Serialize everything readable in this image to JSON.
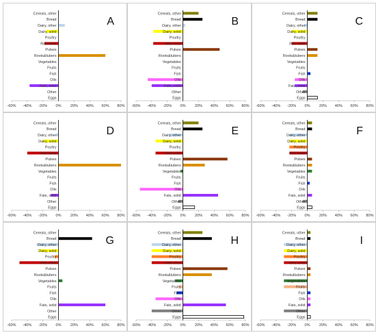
{
  "chart_data": [
    {
      "type": "bar",
      "letter": "A",
      "categories": [
        "Cereals, other",
        "Bread",
        "Dairy, other",
        "Dairy, solid",
        "Poultry",
        "Red meat",
        "Pulses",
        "Roots&tubers",
        "Vegetables",
        "Fruits",
        "Fish",
        "Oils",
        "Fats, solid",
        "Other",
        "Eggs"
      ],
      "values": [
        0,
        0,
        8,
        -16,
        0,
        -18,
        0,
        60,
        0,
        0,
        0,
        0,
        -37,
        0,
        0
      ],
      "colors": [
        "#808000",
        "#000000",
        "#bdd7ee",
        "#ffff00",
        "#ff7f27",
        "#c00000",
        "#8b3a0f",
        "#d99100",
        "#2e7d32",
        "#f4b183",
        "#0033cc",
        "#ff66ff",
        "#9933ff",
        "#7f7f7f",
        "#ffffff"
      ],
      "xlim": [
        -60,
        80
      ],
      "xticks": [
        "-60%",
        "-40%",
        "-20%",
        "0%",
        "20%",
        "40%",
        "60%",
        "80%"
      ]
    },
    {
      "type": "bar",
      "letter": "B",
      "categories": [
        "Cereals, other",
        "Bread",
        "Dairy, other",
        "Dairy, solid",
        "Poultry",
        "Red meat",
        "Pulses",
        "Roots&tubers",
        "Vegetables",
        "Fruits",
        "Fish",
        "Oils",
        "Fats, solid",
        "Other",
        "Eggs"
      ],
      "values": [
        20,
        25,
        3,
        -38,
        0,
        -38,
        47,
        0,
        0,
        0,
        0,
        -45,
        -40,
        0,
        0
      ],
      "colors": [
        "#808000",
        "#000000",
        "#bdd7ee",
        "#ffff00",
        "#ff7f27",
        "#c00000",
        "#8b3a0f",
        "#d99100",
        "#2e7d32",
        "#f4b183",
        "#0033cc",
        "#ff66ff",
        "#9933ff",
        "#7f7f7f",
        "#ffffff"
      ],
      "xlim": [
        -60,
        80
      ],
      "xticks": [
        "-60%",
        "-40%",
        "-20%",
        "0%",
        "20%",
        "40%",
        "60%",
        "80%"
      ]
    },
    {
      "type": "bar",
      "letter": "C",
      "categories": [
        "Cereals, other",
        "Bread",
        "Dairy, other",
        "Dairy, solid",
        "Poultry",
        "Red meat",
        "Pulses",
        "Roots&tubers",
        "Vegetables",
        "Fruits",
        "Fish",
        "Oils",
        "Fats, solid",
        "Other",
        "Eggs"
      ],
      "values": [
        13,
        13,
        -4,
        -20,
        0,
        -20,
        13,
        13,
        0,
        0,
        4,
        -16,
        -16,
        -6,
        13
      ],
      "colors": [
        "#808000",
        "#000000",
        "#bdd7ee",
        "#ffff00",
        "#ff7f27",
        "#c00000",
        "#8b3a0f",
        "#d99100",
        "#2e7d32",
        "#f4b183",
        "#0033cc",
        "#ff66ff",
        "#9933ff",
        "#7f7f7f",
        "#ffffff"
      ],
      "xlim": [
        -60,
        80
      ],
      "xticks": [
        "-60%",
        "-40%",
        "-20%",
        "0%",
        "20%",
        "40%",
        "60%",
        "80%"
      ]
    },
    {
      "type": "bar",
      "letter": "D",
      "categories": [
        "Cereals, other",
        "Bread",
        "Dairy, other",
        "Dairy, solid",
        "Poultry",
        "Red meat",
        "Pulses",
        "Roots&tubers",
        "Vegetables",
        "Fruits",
        "Fish",
        "Oils",
        "Fats, solid",
        "Other",
        "Eggs"
      ],
      "values": [
        0,
        0,
        -3,
        -20,
        0,
        -40,
        0,
        80,
        0,
        0,
        0,
        0,
        -10,
        0,
        0
      ],
      "colors": [
        "#808000",
        "#000000",
        "#bdd7ee",
        "#ffff00",
        "#ff7f27",
        "#c00000",
        "#8b3a0f",
        "#d99100",
        "#2e7d32",
        "#f4b183",
        "#0033cc",
        "#ff66ff",
        "#9933ff",
        "#7f7f7f",
        "#ffffff"
      ],
      "xlim": [
        -60,
        80
      ],
      "xticks": [
        "-60%",
        "-40%",
        "-20%",
        "0%",
        "20%",
        "40%",
        "60%",
        "80%"
      ]
    },
    {
      "type": "bar",
      "letter": "E",
      "categories": [
        "Cereals, other",
        "Bread",
        "Dairy, other",
        "Dairy, solid",
        "Poultry",
        "Red meat",
        "Pulses",
        "Roots&tubers",
        "Vegetables",
        "Fruits",
        "Fish",
        "Oils",
        "Fats, solid",
        "Other",
        "Eggs"
      ],
      "values": [
        20,
        25,
        -18,
        -35,
        0,
        -35,
        57,
        28,
        -3,
        0,
        0,
        -55,
        45,
        -6,
        15
      ],
      "colors": [
        "#808000",
        "#000000",
        "#bdd7ee",
        "#ffff00",
        "#ff7f27",
        "#c00000",
        "#8b3a0f",
        "#d99100",
        "#2e7d32",
        "#f4b183",
        "#0033cc",
        "#ff66ff",
        "#9933ff",
        "#7f7f7f",
        "#ffffff"
      ],
      "xlim": [
        -60,
        80
      ],
      "xticks": [
        "-60%",
        "-40%",
        "-20%",
        "0%",
        "20%",
        "40%",
        "60%",
        "80%"
      ]
    },
    {
      "type": "bar",
      "letter": "F",
      "categories": [
        "Cereals, other",
        "Bread",
        "Dairy, other",
        "Dairy, solid",
        "Poultry",
        "Red meat",
        "Pulses",
        "Roots&tubers",
        "Vegetables",
        "Fruits",
        "Fish",
        "Oils",
        "Fats, solid",
        "Other",
        "Eggs"
      ],
      "values": [
        6,
        6,
        -23,
        -23,
        -23,
        -23,
        6,
        6,
        6,
        0,
        3,
        0,
        6,
        -6,
        6
      ],
      "colors": [
        "#808000",
        "#000000",
        "#bdd7ee",
        "#ffff00",
        "#ff7f27",
        "#c00000",
        "#8b3a0f",
        "#d99100",
        "#2e7d32",
        "#f4b183",
        "#0033cc",
        "#ff66ff",
        "#9933ff",
        "#7f7f7f",
        "#ffffff"
      ],
      "xlim": [
        -60,
        80
      ],
      "xticks": [
        "-60%",
        "-40%",
        "-20%",
        "0%",
        "20%",
        "40%",
        "60%",
        "80%"
      ]
    },
    {
      "type": "bar",
      "letter": "G",
      "categories": [
        "Cereals, other",
        "Bread",
        "Dairy, other",
        "Dairy, solid",
        "Poultry",
        "Red meat",
        "Pulses",
        "Roots&tubers",
        "Vegetables",
        "Fruits",
        "Fish",
        "Oils",
        "Fats, solid",
        "Other",
        "Eggs"
      ],
      "values": [
        0,
        43,
        -28,
        -25,
        -5,
        -50,
        0,
        0,
        5,
        0,
        0,
        0,
        60,
        0,
        0
      ],
      "colors": [
        "#808000",
        "#000000",
        "#bdd7ee",
        "#ffff00",
        "#ff7f27",
        "#c00000",
        "#8b3a0f",
        "#d99100",
        "#2e7d32",
        "#f4b183",
        "#0033cc",
        "#ff66ff",
        "#9933ff",
        "#7f7f7f",
        "#ffffff"
      ],
      "xlim": [
        -60,
        80
      ],
      "xticks": [
        "-60%",
        "-40%",
        "-20%",
        "0%",
        "20%",
        "40%",
        "60%",
        "80%"
      ]
    },
    {
      "type": "bar",
      "letter": "H",
      "categories": [
        "Cereals, other",
        "Bread",
        "Dairy, other",
        "Dairy, solid",
        "Poultry",
        "Red meat",
        "Pulses",
        "Roots&tubers",
        "Vegetables",
        "Fruits",
        "Fish",
        "Oils",
        "Fats, solid",
        "Other",
        "Eggs"
      ],
      "values": [
        25,
        37,
        -40,
        -40,
        -40,
        -40,
        57,
        37,
        -10,
        -5,
        -8,
        -35,
        55,
        -40,
        78
      ],
      "colors": [
        "#808000",
        "#000000",
        "#bdd7ee",
        "#ffff00",
        "#ff7f27",
        "#c00000",
        "#8b3a0f",
        "#d99100",
        "#2e7d32",
        "#f4b183",
        "#0033cc",
        "#ff66ff",
        "#9933ff",
        "#7f7f7f",
        "#ffffff"
      ],
      "xlim": [
        -60,
        80
      ],
      "xticks": [
        "-60%",
        "-40%",
        "-20%",
        "0%",
        "20%",
        "40%",
        "60%",
        "80%"
      ]
    },
    {
      "type": "bar",
      "letter": "I",
      "categories": [
        "Cereals, other",
        "Bread",
        "Dairy, other",
        "Dairy, solid",
        "Poultry",
        "Red meat",
        "Pulses",
        "Roots&tubers",
        "Vegetables",
        "Fruits",
        "Fish",
        "Oils",
        "Fats, solid",
        "Other",
        "Eggs"
      ],
      "values": [
        4,
        4,
        -30,
        -30,
        -30,
        -30,
        4,
        4,
        -30,
        -30,
        4,
        4,
        4,
        -30,
        4
      ],
      "colors": [
        "#808000",
        "#000000",
        "#bdd7ee",
        "#ffff00",
        "#ff7f27",
        "#c00000",
        "#8b3a0f",
        "#d99100",
        "#2e7d32",
        "#f4b183",
        "#0033cc",
        "#ff66ff",
        "#9933ff",
        "#7f7f7f",
        "#ffffff"
      ],
      "xlim": [
        -60,
        80
      ],
      "xticks": [
        "-60%",
        "-40%",
        "-20%",
        "0%",
        "20%",
        "40%",
        "60%",
        "80%"
      ]
    }
  ]
}
